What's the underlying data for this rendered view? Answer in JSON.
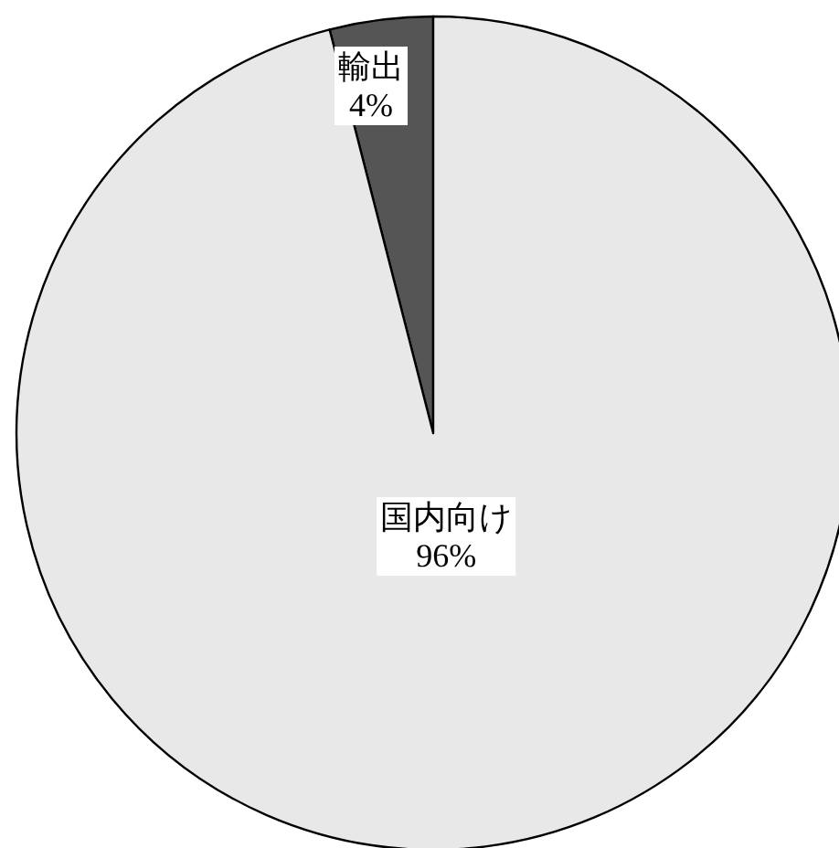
{
  "chart_data": {
    "type": "pie",
    "categories": [
      "輸出",
      "国内向け"
    ],
    "values": [
      4,
      96
    ],
    "colors": [
      "#555555",
      "#e8e8e8"
    ],
    "value_labels": [
      "4%",
      "96%"
    ]
  }
}
